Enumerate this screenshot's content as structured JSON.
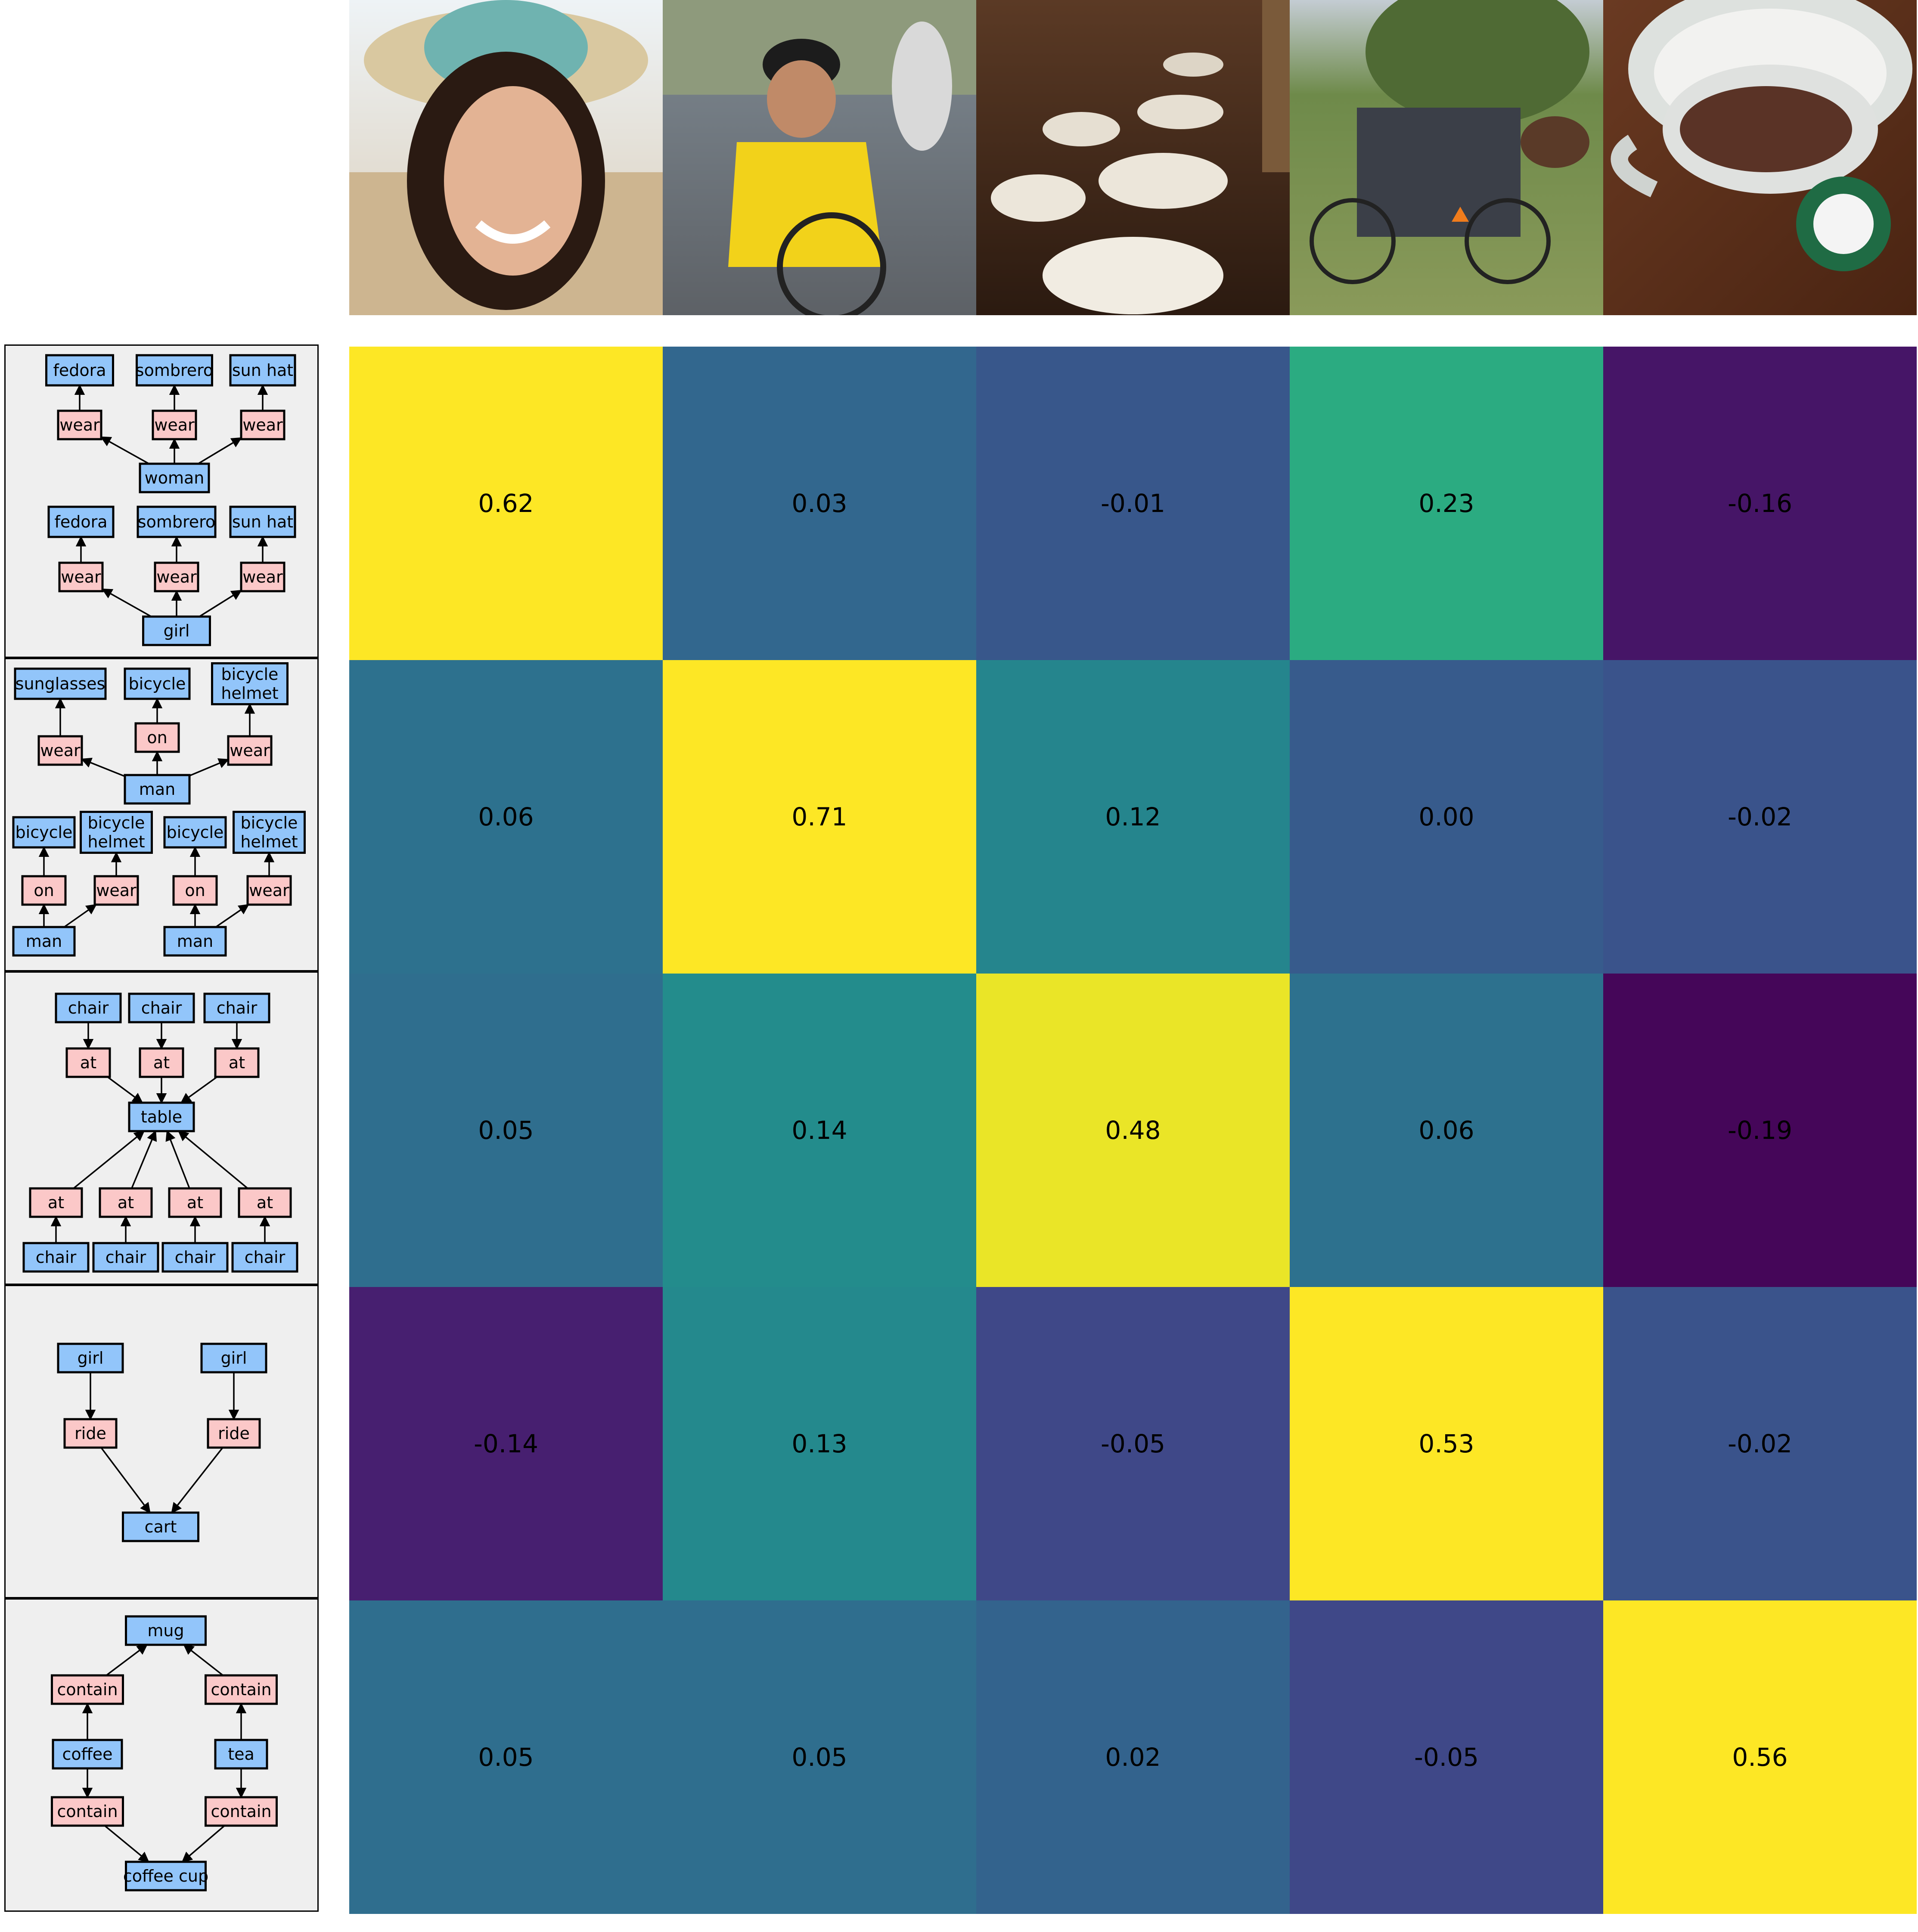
{
  "photos": [
    {
      "icon": "woman-in-sun-hat-photo"
    },
    {
      "icon": "cyclist-photo"
    },
    {
      "icon": "banquet-hall-photo"
    },
    {
      "icon": "horse-cart-photo"
    },
    {
      "icon": "coffee-mug-photo"
    }
  ],
  "colors": {
    "object_node": "#92c5fa",
    "relation_node": "#fbc8c8",
    "panel_background": "#efefef",
    "colormap": "viridis"
  },
  "scene_graphs": [
    {
      "nodes": [
        {
          "id": "a1",
          "label": "fedora",
          "kind": "object"
        },
        {
          "id": "a2",
          "label": "sombrero",
          "kind": "object"
        },
        {
          "id": "a3",
          "label": "sun hat",
          "kind": "object"
        },
        {
          "id": "a4",
          "label": "wear",
          "kind": "relation"
        },
        {
          "id": "a5",
          "label": "wear",
          "kind": "relation"
        },
        {
          "id": "a6",
          "label": "wear",
          "kind": "relation"
        },
        {
          "id": "a7",
          "label": "woman",
          "kind": "object"
        },
        {
          "id": "a8",
          "label": "fedora",
          "kind": "object"
        },
        {
          "id": "a9",
          "label": "sombrero",
          "kind": "object"
        },
        {
          "id": "a10",
          "label": "sun hat",
          "kind": "object"
        },
        {
          "id": "a11",
          "label": "wear",
          "kind": "relation"
        },
        {
          "id": "a12",
          "label": "wear",
          "kind": "relation"
        },
        {
          "id": "a13",
          "label": "wear",
          "kind": "relation"
        },
        {
          "id": "a14",
          "label": "girl",
          "kind": "object"
        }
      ],
      "edges": [
        [
          "a4",
          "a1"
        ],
        [
          "a5",
          "a2"
        ],
        [
          "a6",
          "a3"
        ],
        [
          "a7",
          "a4"
        ],
        [
          "a7",
          "a5"
        ],
        [
          "a7",
          "a6"
        ],
        [
          "a11",
          "a8"
        ],
        [
          "a12",
          "a9"
        ],
        [
          "a13",
          "a10"
        ],
        [
          "a14",
          "a11"
        ],
        [
          "a14",
          "a12"
        ],
        [
          "a14",
          "a13"
        ]
      ]
    },
    {
      "nodes": [
        {
          "id": "b1",
          "label": "sunglasses",
          "kind": "object"
        },
        {
          "id": "b2",
          "label": "bicycle",
          "kind": "object"
        },
        {
          "id": "b3",
          "label": "bicycle\nhelmet",
          "kind": "object"
        },
        {
          "id": "b4",
          "label": "wear",
          "kind": "relation"
        },
        {
          "id": "b5",
          "label": "on",
          "kind": "relation"
        },
        {
          "id": "b6",
          "label": "wear",
          "kind": "relation"
        },
        {
          "id": "b7",
          "label": "man",
          "kind": "object"
        },
        {
          "id": "b8",
          "label": "bicycle",
          "kind": "object"
        },
        {
          "id": "b9",
          "label": "bicycle\nhelmet",
          "kind": "object"
        },
        {
          "id": "b10",
          "label": "bicycle",
          "kind": "object"
        },
        {
          "id": "b11",
          "label": "bicycle\nhelmet",
          "kind": "object"
        },
        {
          "id": "b12",
          "label": "on",
          "kind": "relation"
        },
        {
          "id": "b13",
          "label": "wear",
          "kind": "relation"
        },
        {
          "id": "b14",
          "label": "on",
          "kind": "relation"
        },
        {
          "id": "b15",
          "label": "wear",
          "kind": "relation"
        },
        {
          "id": "b16",
          "label": "man",
          "kind": "object"
        },
        {
          "id": "b17",
          "label": "man",
          "kind": "object"
        }
      ],
      "edges": [
        [
          "b4",
          "b1"
        ],
        [
          "b5",
          "b2"
        ],
        [
          "b6",
          "b3"
        ],
        [
          "b7",
          "b4"
        ],
        [
          "b7",
          "b5"
        ],
        [
          "b7",
          "b6"
        ],
        [
          "b12",
          "b8"
        ],
        [
          "b13",
          "b9"
        ],
        [
          "b16",
          "b12"
        ],
        [
          "b16",
          "b13"
        ],
        [
          "b14",
          "b10"
        ],
        [
          "b15",
          "b11"
        ],
        [
          "b17",
          "b14"
        ],
        [
          "b17",
          "b15"
        ]
      ]
    },
    {
      "nodes": [
        {
          "id": "c1",
          "label": "chair",
          "kind": "object"
        },
        {
          "id": "c2",
          "label": "chair",
          "kind": "object"
        },
        {
          "id": "c3",
          "label": "chair",
          "kind": "object"
        },
        {
          "id": "c4",
          "label": "at",
          "kind": "relation"
        },
        {
          "id": "c5",
          "label": "at",
          "kind": "relation"
        },
        {
          "id": "c6",
          "label": "at",
          "kind": "relation"
        },
        {
          "id": "c7",
          "label": "table",
          "kind": "object"
        },
        {
          "id": "c8",
          "label": "at",
          "kind": "relation"
        },
        {
          "id": "c9",
          "label": "at",
          "kind": "relation"
        },
        {
          "id": "c10",
          "label": "at",
          "kind": "relation"
        },
        {
          "id": "c11",
          "label": "at",
          "kind": "relation"
        },
        {
          "id": "c12",
          "label": "chair",
          "kind": "object"
        },
        {
          "id": "c13",
          "label": "chair",
          "kind": "object"
        },
        {
          "id": "c14",
          "label": "chair",
          "kind": "object"
        },
        {
          "id": "c15",
          "label": "chair",
          "kind": "object"
        }
      ],
      "edges": [
        [
          "c1",
          "c4"
        ],
        [
          "c2",
          "c5"
        ],
        [
          "c3",
          "c6"
        ],
        [
          "c4",
          "c7"
        ],
        [
          "c5",
          "c7"
        ],
        [
          "c6",
          "c7"
        ],
        [
          "c8",
          "c7"
        ],
        [
          "c9",
          "c7"
        ],
        [
          "c10",
          "c7"
        ],
        [
          "c11",
          "c7"
        ],
        [
          "c12",
          "c8"
        ],
        [
          "c13",
          "c9"
        ],
        [
          "c14",
          "c10"
        ],
        [
          "c15",
          "c11"
        ]
      ]
    },
    {
      "nodes": [
        {
          "id": "d1",
          "label": "girl",
          "kind": "object"
        },
        {
          "id": "d2",
          "label": "girl",
          "kind": "object"
        },
        {
          "id": "d3",
          "label": "ride",
          "kind": "relation"
        },
        {
          "id": "d4",
          "label": "ride",
          "kind": "relation"
        },
        {
          "id": "d5",
          "label": "cart",
          "kind": "object"
        }
      ],
      "edges": [
        [
          "d1",
          "d3"
        ],
        [
          "d2",
          "d4"
        ],
        [
          "d3",
          "d5"
        ],
        [
          "d4",
          "d5"
        ]
      ]
    },
    {
      "nodes": [
        {
          "id": "e1",
          "label": "mug",
          "kind": "object"
        },
        {
          "id": "e2",
          "label": "contain",
          "kind": "relation"
        },
        {
          "id": "e3",
          "label": "contain",
          "kind": "relation"
        },
        {
          "id": "e4",
          "label": "coffee",
          "kind": "object"
        },
        {
          "id": "e5",
          "label": "tea",
          "kind": "object"
        },
        {
          "id": "e6",
          "label": "contain",
          "kind": "relation"
        },
        {
          "id": "e7",
          "label": "contain",
          "kind": "relation"
        },
        {
          "id": "e8",
          "label": "coffee cup",
          "kind": "object"
        }
      ],
      "edges": [
        [
          "e2",
          "e1"
        ],
        [
          "e3",
          "e1"
        ],
        [
          "e4",
          "e2"
        ],
        [
          "e5",
          "e3"
        ],
        [
          "e4",
          "e6"
        ],
        [
          "e5",
          "e7"
        ],
        [
          "e6",
          "e8"
        ],
        [
          "e7",
          "e8"
        ]
      ]
    }
  ],
  "chart_data": {
    "type": "heatmap",
    "colormap": "viridis",
    "value_range": [
      -0.2,
      0.5
    ],
    "rows": 5,
    "cols": 5,
    "values": [
      [
        0.62,
        0.03,
        -0.01,
        0.23,
        -0.16
      ],
      [
        0.06,
        0.71,
        0.12,
        0.0,
        -0.02
      ],
      [
        0.05,
        0.14,
        0.48,
        0.06,
        -0.19
      ],
      [
        -0.14,
        0.13,
        -0.05,
        0.53,
        -0.02
      ],
      [
        0.05,
        0.05,
        0.02,
        -0.05,
        0.56
      ]
    ],
    "labels": [
      [
        "0.62",
        "0.03",
        "-0.01",
        "0.23",
        "-0.16"
      ],
      [
        "0.06",
        "0.71",
        "0.12",
        "0.00",
        "-0.02"
      ],
      [
        "0.05",
        "0.14",
        "0.48",
        "0.06",
        "-0.19"
      ],
      [
        "-0.14",
        "0.13",
        "-0.05",
        "0.53",
        "-0.02"
      ],
      [
        "0.05",
        "0.05",
        "0.02",
        "-0.05",
        "0.56"
      ]
    ]
  }
}
